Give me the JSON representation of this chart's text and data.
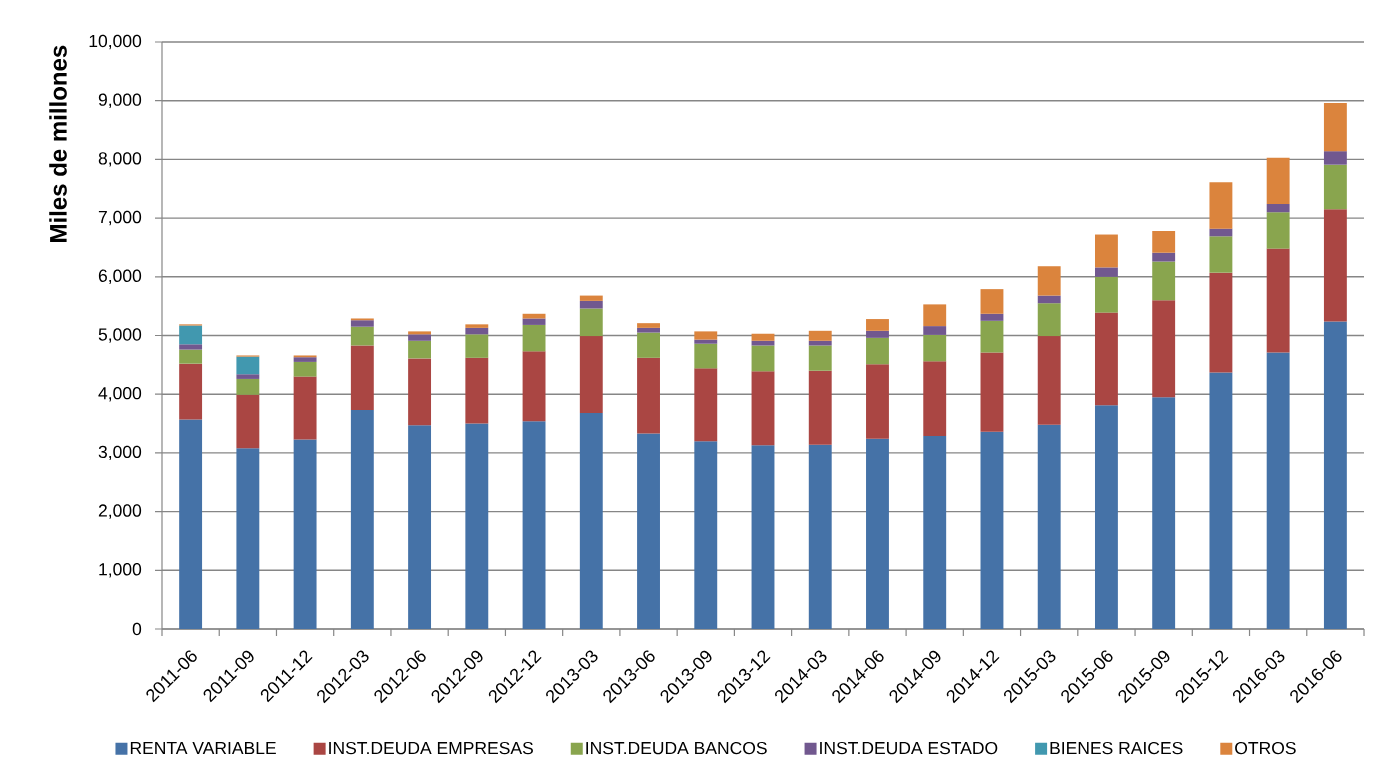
{
  "chart_data": {
    "type": "bar",
    "stacked": true,
    "ylabel": "Miles de millones",
    "categories": [
      "2011-06",
      "2011-09",
      "2011-12",
      "2012-03",
      "2012-06",
      "2012-09",
      "2012-12",
      "2013-03",
      "2013-06",
      "2013-09",
      "2013-12",
      "2014-03",
      "2014-06",
      "2014-09",
      "2014-12",
      "2015-03",
      "2015-06",
      "2015-09",
      "2015-12",
      "2016-03",
      "2016-06"
    ],
    "series": [
      {
        "name": "RENTA VARIABLE",
        "color": "#4572a7",
        "values": [
          3570,
          3080,
          3230,
          3730,
          3470,
          3500,
          3540,
          3680,
          3330,
          3200,
          3130,
          3140,
          3240,
          3290,
          3360,
          3480,
          3810,
          3950,
          4370,
          4710,
          5240
        ]
      },
      {
        "name": "INST.DEUDA EMPRESAS",
        "color": "#aa4643",
        "values": [
          950,
          910,
          1070,
          1100,
          1140,
          1120,
          1190,
          1310,
          1290,
          1240,
          1260,
          1260,
          1270,
          1270,
          1350,
          1510,
          1580,
          1650,
          1700,
          1770,
          1910
        ]
      },
      {
        "name": "INST.DEUDA BANCOS",
        "color": "#89a54e",
        "values": [
          240,
          270,
          250,
          320,
          300,
          400,
          450,
          470,
          430,
          420,
          440,
          430,
          450,
          450,
          540,
          560,
          610,
          660,
          620,
          620,
          760
        ]
      },
      {
        "name": "INST.DEUDA ESTADO",
        "color": "#71588f",
        "values": [
          90,
          80,
          80,
          110,
          110,
          110,
          110,
          130,
          80,
          70,
          80,
          80,
          120,
          150,
          120,
          130,
          160,
          150,
          130,
          140,
          230
        ]
      },
      {
        "name": "BIENES RAICES",
        "color": "#4198af",
        "values": [
          320,
          300,
          null,
          null,
          null,
          null,
          null,
          null,
          null,
          null,
          null,
          null,
          null,
          null,
          null,
          null,
          null,
          null,
          null,
          null,
          null
        ]
      },
      {
        "name": "OTROS",
        "color": "#db843d",
        "values": [
          20,
          20,
          30,
          30,
          50,
          60,
          80,
          90,
          80,
          140,
          120,
          170,
          200,
          370,
          420,
          500,
          560,
          370,
          790,
          790,
          820
        ]
      }
    ],
    "ylim": [
      0,
      10000
    ],
    "yticks": [
      0,
      {
        "value": 1000,
        "label": "1,000"
      },
      {
        "value": 2000,
        "label": "2,000"
      },
      {
        "value": 3000,
        "label": "3,000"
      },
      {
        "value": 4000,
        "label": "4,000"
      },
      {
        "value": 5000,
        "label": "5,000"
      },
      {
        "value": 6000,
        "label": "6,000"
      },
      {
        "value": 7000,
        "label": "7,000"
      },
      {
        "value": 8000,
        "label": "8,000"
      },
      {
        "value": 9000,
        "label": "9,000"
      },
      {
        "value": 10000,
        "label": "10,000"
      }
    ],
    "grid": "y",
    "legend": "bottom"
  }
}
